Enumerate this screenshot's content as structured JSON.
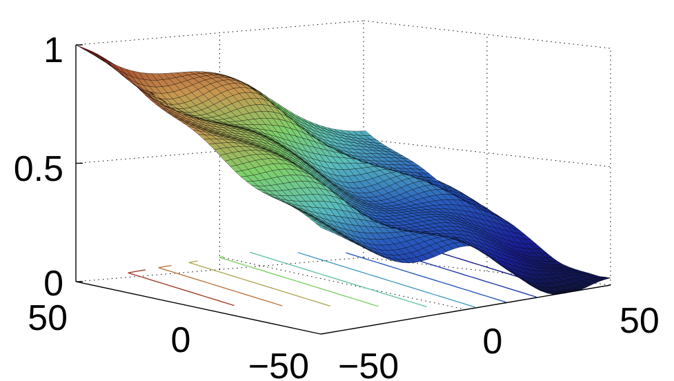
{
  "chart_data": {
    "type": "surface",
    "title": "",
    "xlabel": "",
    "ylabel": "",
    "zlabel": "",
    "x_ticks": [
      "−50",
      "0",
      "50"
    ],
    "y_ticks": [
      "−50",
      "0",
      "50"
    ],
    "z_ticks": [
      "0",
      "0.5",
      "1"
    ],
    "xlim": [
      -50,
      50
    ],
    "ylim": [
      -50,
      50
    ],
    "zlim": [
      0,
      1
    ],
    "grid": true,
    "colormap": "jet",
    "contour_levels": [
      0.1,
      0.2,
      0.3,
      0.4,
      0.5,
      0.6,
      0.7,
      0.8,
      0.9
    ],
    "surface_profile": {
      "description_values": "z along surface diagonal from far-left corner to near-right corner",
      "t": [
        0,
        0.1,
        0.2,
        0.3,
        0.4,
        0.5,
        0.6,
        0.7,
        0.8,
        0.9,
        1
      ],
      "z": [
        1.0,
        0.9,
        0.78,
        0.66,
        0.55,
        0.45,
        0.34,
        0.24,
        0.14,
        0.06,
        0.0
      ]
    },
    "colors": {
      "surface_edge": "#000000",
      "high": "#8b1a10",
      "mid": "#7fd06a",
      "low": "#1a1f9a"
    }
  }
}
